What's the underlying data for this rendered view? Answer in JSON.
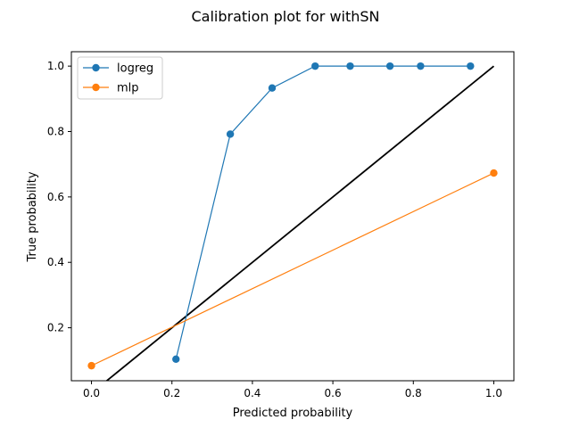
{
  "chart_data": {
    "type": "line",
    "title": "Calibration plot for withSN",
    "xlabel": "Predicted probability",
    "ylabel": "True probability",
    "xlim": [
      -0.05,
      1.05
    ],
    "ylim": [
      0.038,
      1.044
    ],
    "xticks": [
      {
        "value": 0.0,
        "label": "0.0"
      },
      {
        "value": 0.2,
        "label": "0.2"
      },
      {
        "value": 0.4,
        "label": "0.4"
      },
      {
        "value": 0.6,
        "label": "0.6"
      },
      {
        "value": 0.8,
        "label": "0.8"
      },
      {
        "value": 1.0,
        "label": "1.0"
      }
    ],
    "yticks": [
      {
        "value": 0.2,
        "label": "0.2"
      },
      {
        "value": 0.4,
        "label": "0.4"
      },
      {
        "value": 0.6,
        "label": "0.6"
      },
      {
        "value": 0.8,
        "label": "0.8"
      },
      {
        "value": 1.0,
        "label": "1.0"
      }
    ],
    "grid": false,
    "legend_position": "top-left",
    "reference_line": {
      "from": [
        0,
        0
      ],
      "to": [
        1,
        1
      ],
      "color": "#000000"
    },
    "series": [
      {
        "name": "logreg",
        "color": "#1f77b4",
        "x": [
          0.21,
          0.345,
          0.449,
          0.556,
          0.643,
          0.742,
          0.818,
          0.942
        ],
        "y": [
          0.104,
          0.792,
          0.933,
          1.0,
          1.0,
          1.0,
          1.0,
          1.0
        ]
      },
      {
        "name": "mlp",
        "color": "#ff7f0e",
        "x": [
          0.0,
          1.0
        ],
        "y": [
          0.084,
          0.673
        ]
      }
    ]
  }
}
